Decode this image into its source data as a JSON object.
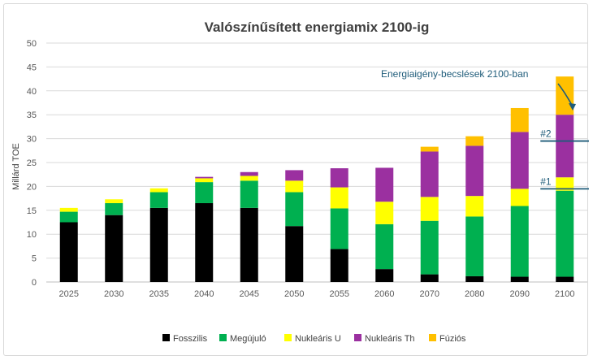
{
  "chart_data": {
    "type": "bar",
    "stacked": true,
    "title": "Valószínűsített energiamix 2100-ig",
    "xlabel": "",
    "ylabel": "Millárd TOE",
    "ylim": [
      0,
      50
    ],
    "yticks": [
      0,
      5,
      10,
      15,
      20,
      25,
      30,
      35,
      40,
      45,
      50
    ],
    "grid": true,
    "legend_position": "bottom",
    "categories": [
      "2025",
      "2030",
      "2035",
      "2040",
      "2045",
      "2050",
      "2055",
      "2060",
      "2070",
      "2080",
      "2090",
      "2100"
    ],
    "series": [
      {
        "name": "Fosszilis",
        "color": "#000000",
        "values": [
          12.5,
          14.0,
          15.5,
          16.5,
          15.5,
          11.7,
          6.9,
          2.7,
          1.6,
          1.2,
          1.1,
          1.1
        ]
      },
      {
        "name": "Megújuló",
        "color": "#00b050",
        "values": [
          2.2,
          2.5,
          3.3,
          4.4,
          5.7,
          7.1,
          8.5,
          9.4,
          11.2,
          12.5,
          14.8,
          18.0
        ]
      },
      {
        "name": "Nukleáris U",
        "color": "#ffff00",
        "values": [
          0.8,
          0.8,
          0.8,
          0.8,
          1.0,
          2.4,
          4.4,
          4.7,
          5.0,
          4.3,
          3.6,
          2.8
        ]
      },
      {
        "name": "Nukleáris Th",
        "color": "#9b30a0",
        "values": [
          0,
          0,
          0,
          0.3,
          0.8,
          2.2,
          4.0,
          7.1,
          9.5,
          10.5,
          11.9,
          13.1
        ]
      },
      {
        "name": "Fúziós",
        "color": "#ffc000",
        "values": [
          0,
          0,
          0,
          0,
          0,
          0,
          0,
          0,
          1.0,
          2.0,
          5.0,
          8.0
        ]
      }
    ],
    "annotations": {
      "text": "Energiaigény-becslések 2100-ban",
      "markers": [
        {
          "label": "#1",
          "value": 19.5
        },
        {
          "label": "#2",
          "value": 29.5
        }
      ]
    }
  }
}
